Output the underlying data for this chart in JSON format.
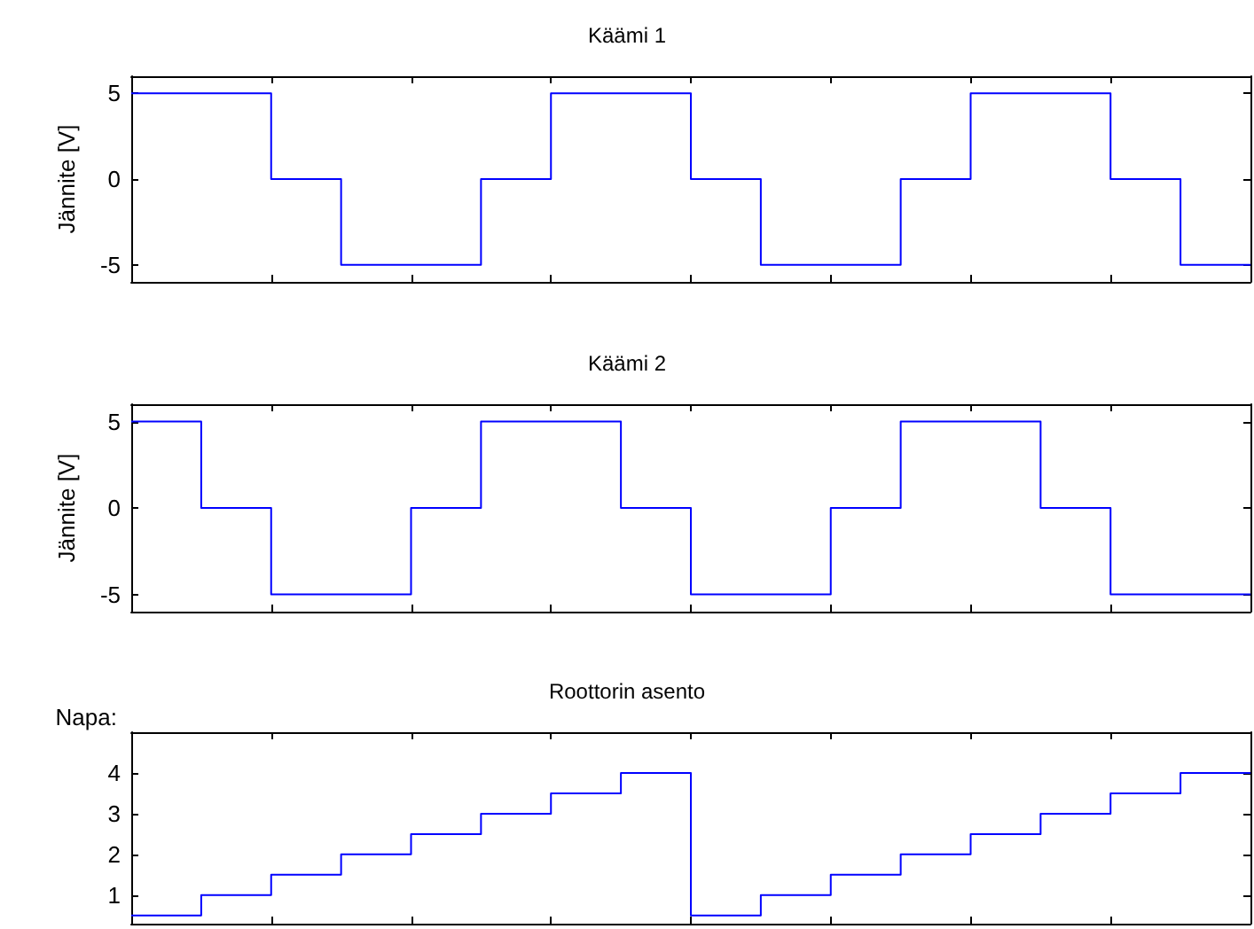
{
  "chart_data": [
    {
      "type": "step",
      "title": "Käämi 1",
      "ylabel": "Jännite [V]",
      "categories": [
        null,
        null,
        null,
        null,
        null,
        null,
        null,
        null,
        null,
        null,
        null,
        null,
        null,
        null,
        null,
        null,
        null
      ],
      "series": [
        {
          "color": "#0000ff",
          "values": [
            5,
            5,
            0,
            -5,
            -5,
            0,
            5,
            5,
            0,
            -5,
            -5,
            0,
            5,
            5,
            0,
            -5,
            -5
          ]
        }
      ],
      "ylim": [
        -6,
        6
      ],
      "yticks": [
        -5,
        0,
        5
      ],
      "tick_labels": "y"
    },
    {
      "type": "step",
      "title": "Käämi 2",
      "ylabel": "Jännite [V]",
      "categories": [
        null,
        null,
        null,
        null,
        null,
        null,
        null,
        null,
        null,
        null,
        null,
        null,
        null,
        null,
        null,
        null,
        null
      ],
      "series": [
        {
          "color": "#0000ff",
          "values": [
            5,
            0,
            -5,
            -5,
            0,
            5,
            5,
            0,
            -5,
            -5,
            0,
            5,
            5,
            0,
            -5,
            -5,
            -5
          ]
        }
      ],
      "ylim": [
        -6,
        6
      ],
      "yticks": [
        -5,
        0,
        5
      ],
      "tick_labels": "y"
    },
    {
      "type": "step",
      "title": "Roottorin asento",
      "ylabel": "Napa:",
      "categories": [
        null,
        null,
        null,
        null,
        null,
        null,
        null,
        null,
        null,
        null,
        null,
        null,
        null,
        null,
        null,
        null,
        null
      ],
      "series": [
        {
          "color": "#0000ff",
          "values": [
            0.5,
            1,
            1.5,
            2,
            2.5,
            3,
            3.5,
            4,
            0.5,
            1,
            1.5,
            2,
            2.5,
            3,
            3.5,
            4,
            4
          ]
        }
      ],
      "ylim": [
        0.3,
        5
      ],
      "yticks": [
        1,
        2,
        3,
        4
      ],
      "tick_labels": "y"
    }
  ]
}
